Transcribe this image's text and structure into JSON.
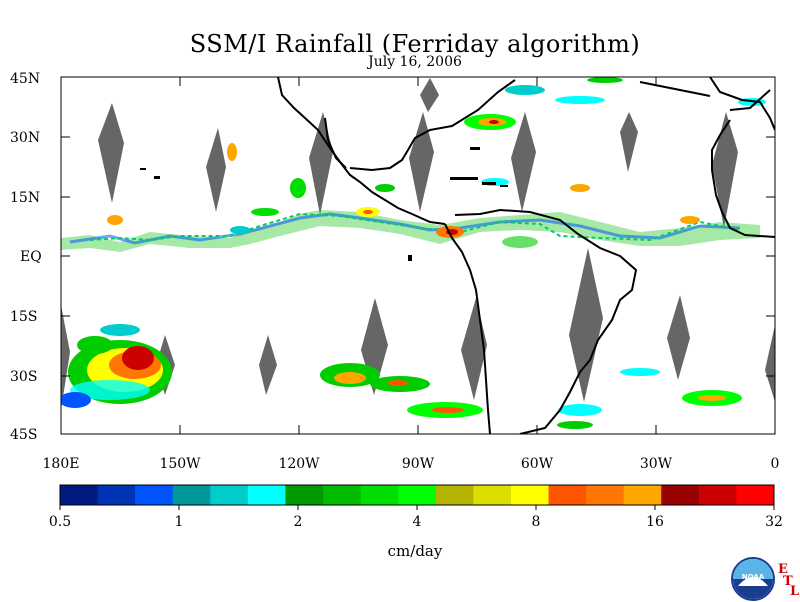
{
  "title": "SSM/I Rainfall (Ferriday algorithm)",
  "subtitle": "July 16, 2006",
  "lat_labels": [
    "45N",
    "30N",
    "15N",
    "EQ",
    "15S",
    "30S",
    "45S"
  ],
  "lon_labels": [
    "180E",
    "150W",
    "120W",
    "90W",
    "60W",
    "30W",
    "0"
  ],
  "colorbar": {
    "colors": [
      "#001a80",
      "#0033b3",
      "#0055ff",
      "#009999",
      "#00cccc",
      "#00ffff",
      "#009900",
      "#00bb00",
      "#00dd00",
      "#00ff00",
      "#b3b300",
      "#dddd00",
      "#ffff00",
      "#ff5500",
      "#ff7700",
      "#ffa500",
      "#990000",
      "#cc0000",
      "#ff0000"
    ],
    "tick_labels": [
      "0.5",
      "1",
      "2",
      "4",
      "8",
      "16",
      "32"
    ],
    "unit": "cm/day"
  },
  "logo": {
    "text": "NOAA",
    "etl_letters": [
      "E",
      "T",
      "L"
    ]
  }
}
